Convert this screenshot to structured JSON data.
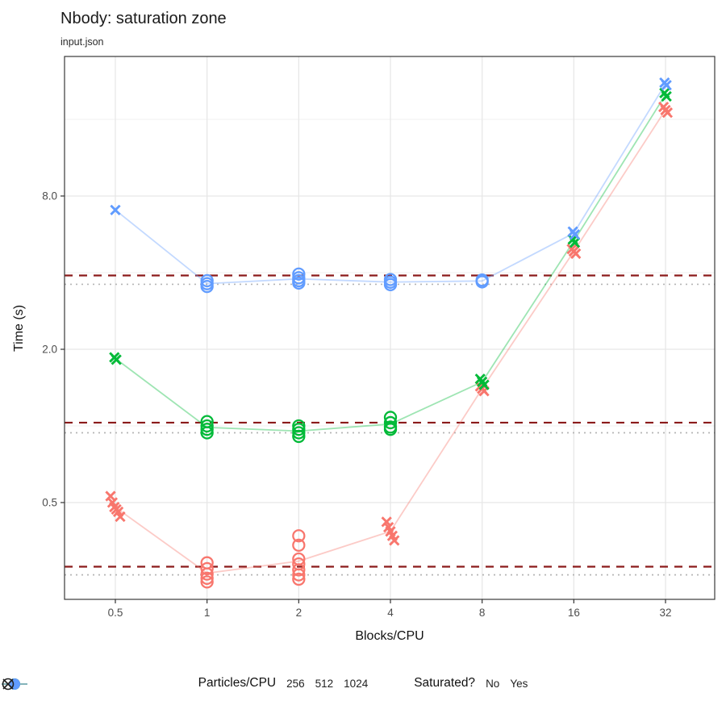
{
  "title": "Nbody: saturation zone",
  "subtitle": "input.json",
  "legend": {
    "color_title": "Particles/CPU",
    "shape_title": "Saturated?",
    "shape_items": [
      {
        "label": "No",
        "shape": "cross"
      },
      {
        "label": "Yes",
        "shape": "circle"
      }
    ]
  },
  "chart_data": {
    "type": "scatter",
    "title": "Nbody: saturation zone",
    "subtitle": "input.json",
    "xlabel": "Blocks/CPU",
    "ylabel": "Time (s)",
    "x_scale": "log2",
    "y_scale": "log10",
    "grid": true,
    "legend_position": "bottom",
    "xlim": [
      0.34,
      46
    ],
    "ylim": [
      0.21,
      28
    ],
    "x_ticks": {
      "labels": [
        "0.5",
        "1",
        "2",
        "4",
        "8",
        "16",
        "32"
      ],
      "values": [
        0.5,
        1,
        2,
        4,
        8,
        16,
        32
      ]
    },
    "y_ticks": {
      "labels": [
        "0.5",
        "2.0",
        "8.0"
      ],
      "values": [
        0.5,
        2.0,
        8.0
      ],
      "minor_values": [
        1,
        4,
        16
      ]
    },
    "ref_dashed_color": "#8B1A1A",
    "ref_dotted_color": "#B5B5B5",
    "points_format": [
      "blocks_per_cpu",
      "time_s",
      "saturated_0_or_1"
    ],
    "series": [
      {
        "name": "256",
        "color": "#F8766D",
        "ref_dashed_time_s": 0.28,
        "ref_dotted_time_s": 0.26,
        "points": [
          [
            0.5,
            0.53,
            0
          ],
          [
            0.5,
            0.5,
            0
          ],
          [
            0.5,
            0.48,
            0
          ],
          [
            0.5,
            0.47,
            0
          ],
          [
            0.5,
            0.46,
            0
          ],
          [
            0.5,
            0.44,
            0
          ],
          [
            1,
            0.29,
            1
          ],
          [
            1,
            0.275,
            1
          ],
          [
            1,
            0.262,
            1
          ],
          [
            1,
            0.252,
            1
          ],
          [
            1,
            0.244,
            1
          ],
          [
            2,
            0.37,
            1
          ],
          [
            2,
            0.34,
            1
          ],
          [
            2,
            0.3,
            1
          ],
          [
            2,
            0.287,
            1
          ],
          [
            2,
            0.272,
            1
          ],
          [
            2,
            0.26,
            1
          ],
          [
            2,
            0.25,
            1
          ],
          [
            4,
            0.42,
            0
          ],
          [
            4,
            0.4,
            0
          ],
          [
            4,
            0.385,
            0
          ],
          [
            4,
            0.37,
            0
          ],
          [
            4,
            0.355,
            0
          ],
          [
            8,
            1.43,
            0
          ],
          [
            8,
            1.4,
            0
          ],
          [
            8,
            1.37,
            0
          ],
          [
            16,
            4.95,
            0
          ],
          [
            16,
            4.85,
            0
          ],
          [
            16,
            4.75,
            0
          ],
          [
            32,
            17.9,
            0
          ],
          [
            32,
            17.4,
            0
          ],
          [
            32,
            17.0,
            0
          ]
        ]
      },
      {
        "name": "512",
        "color": "#00BA38",
        "ref_dashed_time_s": 1.03,
        "ref_dotted_time_s": 0.94,
        "points": [
          [
            0.5,
            1.86,
            0
          ],
          [
            0.5,
            1.82,
            0
          ],
          [
            1,
            1.04,
            1
          ],
          [
            1,
            1.0,
            1
          ],
          [
            1,
            0.97,
            1
          ],
          [
            1,
            0.94,
            1
          ],
          [
            2,
            1.0,
            1
          ],
          [
            2,
            0.97,
            1
          ],
          [
            2,
            0.94,
            1
          ],
          [
            2,
            0.91,
            1
          ],
          [
            4,
            1.08,
            1
          ],
          [
            4,
            1.03,
            1
          ],
          [
            4,
            0.99,
            1
          ],
          [
            4,
            0.97,
            1
          ],
          [
            8,
            1.53,
            0
          ],
          [
            8,
            1.49,
            0
          ],
          [
            8,
            1.45,
            0
          ],
          [
            16,
            5.4,
            0
          ],
          [
            16,
            5.25,
            0
          ],
          [
            32,
            20.3,
            0
          ],
          [
            32,
            19.7,
            0
          ]
        ]
      },
      {
        "name": "1024",
        "color": "#619CFF",
        "ref_dashed_time_s": 3.9,
        "ref_dotted_time_s": 3.6,
        "points": [
          [
            0.5,
            7.05,
            0
          ],
          [
            1,
            3.72,
            1
          ],
          [
            1,
            3.62,
            1
          ],
          [
            1,
            3.53,
            1
          ],
          [
            2,
            3.95,
            1
          ],
          [
            2,
            3.82,
            1
          ],
          [
            2,
            3.72,
            1
          ],
          [
            2,
            3.64,
            1
          ],
          [
            4,
            3.76,
            1
          ],
          [
            4,
            3.67,
            1
          ],
          [
            4,
            3.59,
            1
          ],
          [
            8,
            3.74,
            1
          ],
          [
            8,
            3.68,
            1
          ],
          [
            16,
            5.8,
            0
          ],
          [
            16,
            5.65,
            0
          ],
          [
            32,
            22.3,
            0
          ],
          [
            32,
            21.8,
            0
          ]
        ]
      }
    ]
  }
}
